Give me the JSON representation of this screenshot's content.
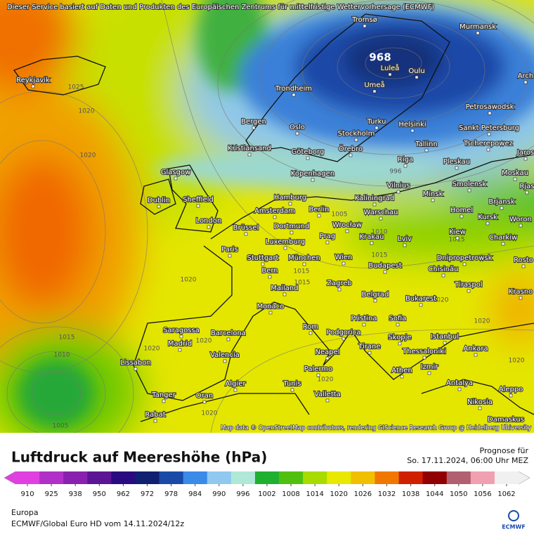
{
  "header": {
    "disclaimer": "Dieser Service basiert auf Daten und Produkten des Europäischen Zentrums für mittelfristige Wettervorhersage (ECMWF)",
    "attribution": "Map data © OpenStreetMap contributors, rendering GIScience Research Group @ Heidelberg University"
  },
  "map": {
    "cities": [
      "Tromsø",
      "Murmansk",
      "Luleå",
      "Oulu",
      "Umeå",
      "Reykjavik",
      "Trondheim",
      "Arch",
      "Petrosawodsk",
      "Bergen",
      "Oslo",
      "Turku",
      "Helsinki",
      "Sankt Petersburg",
      "Stockholm",
      "Örebro",
      "Kristiansand",
      "Göteborg",
      "Tallinn",
      "Tscherepowez",
      "Jaros",
      "Riga",
      "Pleskau",
      "Glasgow",
      "Kopenhagen",
      "Moskau",
      "Vilnius",
      "Smolensk",
      "Rjas",
      "Minsk",
      "Hamburg",
      "Kaliningrad",
      "Dublin",
      "Sheffield",
      "Brjansk",
      "Amsterdam",
      "Berlin",
      "Warschau",
      "Homel",
      "Kursk",
      "Woron",
      "London",
      "Brüssel",
      "Dortmund",
      "Wrocław",
      "Kiew",
      "Charkiw",
      "Prag",
      "Krakau",
      "Lviv",
      "Paris",
      "Luxemburg",
      "Stuttgart",
      "München",
      "Wien",
      "Dnipropetrowsk",
      "Rosto",
      "Budapest",
      "Chisinău",
      "Bern",
      "Tiraspol",
      "Krasno",
      "Mailand",
      "Zagreb",
      "Belgrad",
      "Bukarest",
      "Monaco",
      "Pristina",
      "Sofia",
      "Rom",
      "Podgorica",
      "Skopje",
      "Istanbul",
      "Saragossa",
      "Barcelona",
      "Madrid",
      "Tirane",
      "Ankara",
      "Thessaloniki",
      "Neapel",
      "Valencia",
      "Lissabon",
      "Izmir",
      "Athen",
      "Palermo",
      "Algier",
      "Tunis",
      "Antalya",
      "Aleppo",
      "Tanger",
      "Oran",
      "Valletta",
      "Nikosia",
      "Rabat",
      "Damaskus"
    ],
    "isobar_labels": [
      "968",
      "1025",
      "1020",
      "1020",
      "1005",
      "1010",
      "1015",
      "1015",
      "1015",
      "1015",
      "1020",
      "1020",
      "1020",
      "1015",
      "1010",
      "1005",
      "1020",
      "1020",
      "1020",
      "1020",
      "996",
      "1020"
    ]
  },
  "title": "Luftdruck auf Meereshöhe (hPa)",
  "forecast_label": "Prognose für",
  "forecast_time": "So. 17.11.2024, 06:00 Uhr MEZ",
  "colorbar": {
    "ticks": [
      "910",
      "925",
      "938",
      "950",
      "962",
      "972",
      "978",
      "984",
      "990",
      "996",
      "1002",
      "1008",
      "1014",
      "1020",
      "1026",
      "1032",
      "1038",
      "1044",
      "1050",
      "1056",
      "1062"
    ],
    "colors": [
      "#e040e0",
      "#b030c8",
      "#8a20b0",
      "#5a1494",
      "#2a0a80",
      "#102070",
      "#1a4aa8",
      "#3a8ae8",
      "#90c8f0",
      "#b0e8d8",
      "#20b030",
      "#50c010",
      "#a8dc00",
      "#e8e800",
      "#f0c000",
      "#f07800",
      "#d02000",
      "#900000",
      "#b06070",
      "#f0a0b0",
      "#f0f0f0"
    ]
  },
  "region": "Europa",
  "model_run": "ECMWF/Global Euro HD vom  14.11.2024/12z",
  "logo": "ECMWF"
}
